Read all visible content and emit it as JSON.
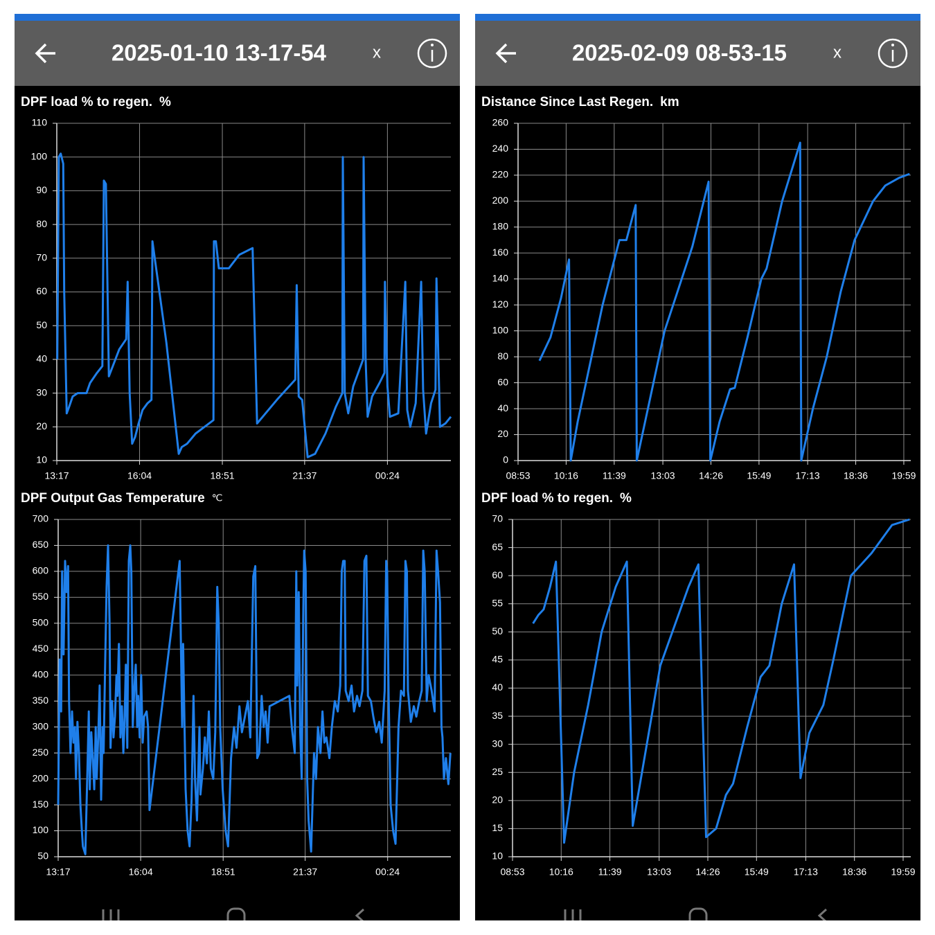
{
  "screens": [
    {
      "header_title": "2025-01-10 13-17-54",
      "close": "x"
    },
    {
      "header_title": "2025-02-09 08-53-15",
      "close": "x"
    }
  ],
  "chart_data": [
    {
      "type": "line",
      "title": "DPF load % to regen.",
      "unit": "%",
      "color": "#1f7fea",
      "grid": true,
      "xlim": [
        797,
        1592
      ],
      "ylim": [
        10,
        110
      ],
      "xticks": [
        {
          "value": 797,
          "label": "13:17"
        },
        {
          "value": 964,
          "label": "16:04"
        },
        {
          "value": 1131,
          "label": "18:51"
        },
        {
          "value": 1297,
          "label": "21:37"
        },
        {
          "value": 1464,
          "label": "00:24"
        }
      ],
      "yticks": [
        10,
        20,
        30,
        40,
        50,
        60,
        70,
        80,
        90,
        100,
        110
      ],
      "x": [
        798,
        801,
        805,
        810,
        812,
        817,
        822,
        829,
        839,
        857,
        864,
        878,
        889,
        892,
        896,
        902,
        910,
        923,
        937,
        940,
        944,
        949,
        955,
        962,
        970,
        980,
        988,
        990,
        1018,
        1043,
        1049,
        1060,
        1077,
        1095,
        1113,
        1114,
        1118,
        1124,
        1144,
        1165,
        1192,
        1201,
        1241,
        1278,
        1281,
        1285,
        1292,
        1303,
        1318,
        1339,
        1360,
        1373,
        1374,
        1378,
        1385,
        1395,
        1415,
        1416,
        1420,
        1424,
        1433,
        1448,
        1458,
        1459,
        1464,
        1469,
        1486,
        1500,
        1504,
        1510,
        1521,
        1532,
        1536,
        1542,
        1552,
        1561,
        1563,
        1570,
        1581,
        1592
      ],
      "values": [
        40,
        100,
        101,
        98,
        60,
        24,
        26,
        29,
        30,
        30,
        33,
        36,
        38,
        93,
        92,
        35,
        38,
        43,
        46,
        63,
        30,
        15,
        17,
        21,
        25,
        27,
        28,
        75,
        45,
        12,
        14,
        15,
        18,
        20,
        22,
        75,
        75,
        67,
        67,
        71,
        73,
        21,
        28,
        34,
        62,
        29,
        28,
        11,
        12,
        18,
        26,
        30,
        100,
        30,
        24,
        32,
        40,
        100,
        40,
        23,
        29,
        33,
        36,
        63,
        32,
        23,
        24,
        63,
        25,
        20,
        27,
        63,
        31,
        18,
        27,
        31,
        64,
        20,
        21,
        23
      ]
    },
    {
      "type": "line",
      "title": "DPF Output Gas Temperature",
      "unit": "℃",
      "color": "#1f7fea",
      "grid": true,
      "xlim": [
        797,
        1592
      ],
      "ylim": [
        50,
        700
      ],
      "xticks": [
        {
          "value": 797,
          "label": "13:17"
        },
        {
          "value": 964,
          "label": "16:04"
        },
        {
          "value": 1131,
          "label": "18:51"
        },
        {
          "value": 1297,
          "label": "21:37"
        },
        {
          "value": 1464,
          "label": "00:24"
        }
      ],
      "yticks": [
        50,
        100,
        150,
        200,
        250,
        300,
        350,
        400,
        450,
        500,
        550,
        600,
        650,
        700
      ],
      "x": [
        797,
        800,
        803,
        805,
        808,
        811,
        814,
        817,
        819,
        822,
        825,
        828,
        831,
        833,
        836,
        839,
        842,
        845,
        847,
        852,
        856,
        859,
        861,
        864,
        867,
        870,
        873,
        875,
        878,
        881,
        884,
        887,
        889,
        892,
        895,
        898,
        901,
        903,
        906,
        909,
        912,
        915,
        917,
        920,
        923,
        926,
        929,
        931,
        934,
        937,
        940,
        943,
        945,
        948,
        951,
        954,
        957,
        959,
        962,
        965,
        968,
        971,
        976,
        979,
        982,
        1043,
        1048,
        1050,
        1055,
        1059,
        1063,
        1067,
        1071,
        1074,
        1078,
        1083,
        1085,
        1090,
        1094,
        1098,
        1102,
        1106,
        1111,
        1115,
        1119,
        1122,
        1125,
        1127,
        1130,
        1136,
        1141,
        1147,
        1153,
        1158,
        1164,
        1169,
        1175,
        1181,
        1186,
        1192,
        1196,
        1200,
        1204,
        1209,
        1213,
        1217,
        1221,
        1225,
        1265,
        1270,
        1276,
        1279,
        1281,
        1284,
        1287,
        1290,
        1293,
        1295,
        1298,
        1301,
        1304,
        1309,
        1315,
        1319,
        1323,
        1328,
        1332,
        1336,
        1340,
        1346,
        1351,
        1357,
        1363,
        1368,
        1371,
        1374,
        1377,
        1379,
        1385,
        1391,
        1396,
        1402,
        1407,
        1413,
        1417,
        1421,
        1424,
        1430,
        1435,
        1441,
        1447,
        1452,
        1458,
        1461,
        1463,
        1466,
        1470,
        1475,
        1480,
        1486,
        1491,
        1497,
        1500,
        1503,
        1505,
        1511,
        1517,
        1522,
        1528,
        1533,
        1536,
        1539,
        1543,
        1547,
        1553,
        1559,
        1563,
        1566,
        1570,
        1573,
        1575,
        1578,
        1582,
        1587,
        1591
      ],
      "values": [
        150,
        430,
        330,
        600,
        440,
        620,
        560,
        610,
        350,
        250,
        330,
        270,
        300,
        200,
        310,
        250,
        150,
        100,
        70,
        55,
        210,
        330,
        180,
        290,
        240,
        180,
        300,
        200,
        280,
        380,
        160,
        300,
        250,
        420,
        570,
        650,
        500,
        260,
        350,
        280,
        320,
        400,
        360,
        460,
        280,
        340,
        250,
        300,
        420,
        260,
        620,
        650,
        600,
        300,
        370,
        420,
        300,
        360,
        280,
        400,
        270,
        320,
        330,
        300,
        140,
        620,
        300,
        460,
        180,
        100,
        70,
        160,
        360,
        200,
        120,
        300,
        170,
        220,
        280,
        230,
        330,
        220,
        200,
        290,
        570,
        500,
        300,
        250,
        180,
        100,
        70,
        240,
        300,
        260,
        340,
        290,
        320,
        350,
        280,
        590,
        610,
        240,
        250,
        360,
        300,
        330,
        270,
        340,
        360,
        300,
        250,
        600,
        380,
        560,
        290,
        200,
        510,
        640,
        600,
        200,
        120,
        60,
        250,
        200,
        300,
        250,
        330,
        270,
        280,
        240,
        300,
        350,
        330,
        380,
        600,
        620,
        620,
        370,
        350,
        380,
        330,
        360,
        340,
        370,
        620,
        630,
        360,
        350,
        320,
        290,
        310,
        270,
        370,
        620,
        600,
        360,
        150,
        100,
        75,
        300,
        370,
        360,
        620,
        600,
        370,
        310,
        340,
        320,
        350,
        370,
        640,
        600,
        350,
        400,
        370,
        330,
        640,
        600,
        540,
        300,
        280,
        200,
        240,
        190,
        250
      ]
    },
    {
      "type": "line",
      "title": "Distance Since Last Regen.",
      "unit": "km",
      "color": "#1f7fea",
      "grid": true,
      "xlim": [
        533,
        1211
      ],
      "ylim": [
        0,
        260
      ],
      "xticks": [
        {
          "value": 533,
          "label": "08:53"
        },
        {
          "value": 616,
          "label": "10:16"
        },
        {
          "value": 699,
          "label": "11:39"
        },
        {
          "value": 783,
          "label": "13:03"
        },
        {
          "value": 866,
          "label": "14:26"
        },
        {
          "value": 949,
          "label": "15:49"
        },
        {
          "value": 1033,
          "label": "17:13"
        },
        {
          "value": 1116,
          "label": "18:36"
        },
        {
          "value": 1199,
          "label": "19:59"
        }
      ],
      "yticks": [
        0,
        20,
        40,
        60,
        80,
        100,
        120,
        140,
        160,
        180,
        200,
        220,
        240,
        260
      ],
      "x": [
        570,
        589,
        607,
        621,
        624,
        636,
        679,
        708,
        720,
        736,
        738,
        786,
        834,
        862,
        865,
        881,
        899,
        907,
        929,
        953,
        962,
        989,
        1020,
        1022,
        1042,
        1066,
        1090,
        1114,
        1146,
        1167,
        1191,
        1209
      ],
      "values": [
        77,
        95,
        125,
        155,
        0,
        30,
        120,
        170,
        170,
        197,
        0,
        100,
        165,
        215,
        0,
        30,
        55,
        56,
        95,
        140,
        148,
        200,
        245,
        0,
        40,
        80,
        130,
        170,
        200,
        212,
        218,
        221
      ]
    },
    {
      "type": "line",
      "title": "DPF load % to regen.",
      "unit": "%",
      "color": "#1f7fea",
      "grid": true,
      "xlim": [
        533,
        1212
      ],
      "ylim": [
        10,
        70
      ],
      "xticks": [
        {
          "value": 533,
          "label": "08:53"
        },
        {
          "value": 616,
          "label": "10:16"
        },
        {
          "value": 699,
          "label": "11:39"
        },
        {
          "value": 783,
          "label": "13:03"
        },
        {
          "value": 866,
          "label": "14:26"
        },
        {
          "value": 949,
          "label": "15:49"
        },
        {
          "value": 1033,
          "label": "17:13"
        },
        {
          "value": 1116,
          "label": "18:36"
        },
        {
          "value": 1199,
          "label": "19:59"
        }
      ],
      "yticks": [
        10,
        15,
        20,
        25,
        30,
        35,
        40,
        45,
        50,
        55,
        60,
        65,
        70
      ],
      "x": [
        568,
        577,
        586,
        597,
        607,
        621,
        638,
        662,
        685,
        709,
        728,
        738,
        762,
        785,
        809,
        833,
        850,
        863,
        880,
        897,
        909,
        933,
        956,
        971,
        992,
        1013,
        1024,
        1039,
        1063,
        1080,
        1110,
        1145,
        1180,
        1210
      ],
      "values": [
        51.5,
        53,
        54,
        58,
        62.5,
        12.5,
        25,
        37,
        50,
        58,
        62.5,
        15.5,
        30,
        44,
        51,
        58,
        62,
        13.5,
        15,
        21,
        23,
        33,
        42,
        44,
        55,
        62,
        24,
        32,
        37,
        45,
        60,
        64,
        69,
        70
      ]
    }
  ]
}
